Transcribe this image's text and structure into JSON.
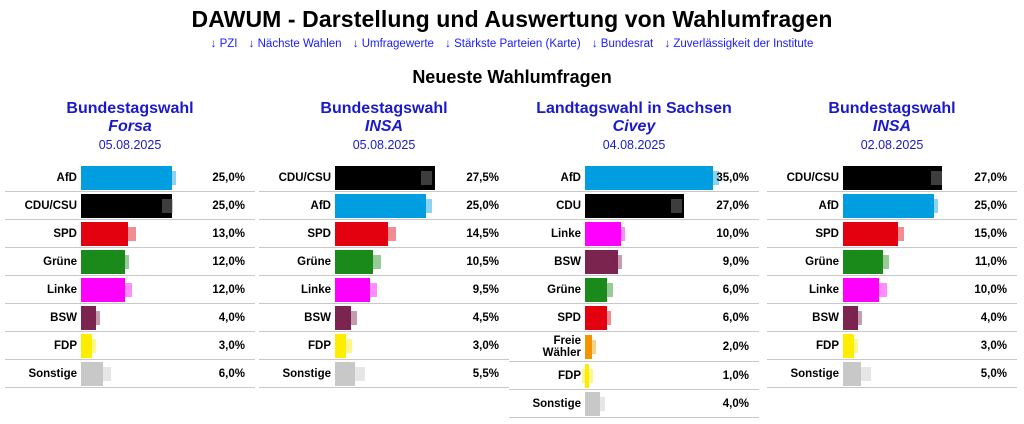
{
  "header": {
    "title": "DAWUM - Darstellung und Auswertung von Wahlumfragen",
    "nav": [
      "↓ PZI",
      "↓ Nächste Wahlen",
      "↓ Umfragewerte",
      "↓ Stärkste Parteien (Karte)",
      "↓ Bundesrat",
      "↓ Zuverlässigkeit der Institute"
    ]
  },
  "section_title": "Neueste Wahlumfragen",
  "colors": {
    "AfD": "#009ee0",
    "CDU/CSU": "#000000",
    "CDU": "#000000",
    "SPD": "#e3000f",
    "Grüne": "#1a8b1a",
    "Linke": "#ff00ff",
    "BSW": "#7b2450",
    "FDP": "#ffed00",
    "Freie Wähler": "#f29400",
    "Sonstige": "#c8c8c8",
    "link": "#1a1aff",
    "heading": "#1a1acc"
  },
  "scale_max_percent": 37,
  "polls": [
    {
      "election": "Bundestagswahl",
      "institute": "Forsa",
      "date": "05.08.2025",
      "results": [
        {
          "party": "AfD",
          "value": 25.0,
          "display": "25,0%",
          "ghost": 25.0
        },
        {
          "party": "CDU/CSU",
          "value": 25.0,
          "display": "25,0%",
          "ghost": 24.0
        },
        {
          "party": "SPD",
          "value": 13.0,
          "display": "13,0%",
          "ghost": 14.0
        },
        {
          "party": "Grüne",
          "value": 12.0,
          "display": "12,0%",
          "ghost": 12.0
        },
        {
          "party": "Linke",
          "value": 12.0,
          "display": "12,0%",
          "ghost": 13.0
        },
        {
          "party": "BSW",
          "value": 4.0,
          "display": "4,0%",
          "ghost": 4.0
        },
        {
          "party": "FDP",
          "value": 3.0,
          "display": "3,0%",
          "ghost": 3.0
        },
        {
          "party": "Sonstige",
          "value": 6.0,
          "display": "6,0%",
          "ghost": 7.0
        }
      ]
    },
    {
      "election": "Bundestagswahl",
      "institute": "INSA",
      "date": "05.08.2025",
      "results": [
        {
          "party": "CDU/CSU",
          "value": 27.5,
          "display": "27,5%",
          "ghost": 25.5
        },
        {
          "party": "AfD",
          "value": 25.0,
          "display": "25,0%",
          "ghost": 25.5
        },
        {
          "party": "SPD",
          "value": 14.5,
          "display": "14,5%",
          "ghost": 15.5
        },
        {
          "party": "Grüne",
          "value": 10.5,
          "display": "10,5%",
          "ghost": 11.5
        },
        {
          "party": "Linke",
          "value": 9.5,
          "display": "9,5%",
          "ghost": 10.5
        },
        {
          "party": "BSW",
          "value": 4.5,
          "display": "4,5%",
          "ghost": 5.0
        },
        {
          "party": "FDP",
          "value": 3.0,
          "display": "3,0%",
          "ghost": 3.5
        },
        {
          "party": "Sonstige",
          "value": 5.5,
          "display": "5,5%",
          "ghost": 7.0
        }
      ]
    },
    {
      "election": "Landtagswahl in Sachsen",
      "institute": "Civey",
      "date": "04.08.2025",
      "results": [
        {
          "party": "AfD",
          "value": 35.0,
          "display": "35,0%",
          "ghost": 35.5
        },
        {
          "party": "CDU",
          "value": 27.0,
          "display": "27,0%",
          "ghost": 25.5
        },
        {
          "party": "Linke",
          "value": 10.0,
          "display": "10,0%",
          "ghost": 10.0
        },
        {
          "party": "BSW",
          "value": 9.0,
          "display": "9,0%",
          "ghost": 9.0
        },
        {
          "party": "Grüne",
          "value": 6.0,
          "display": "6,0%",
          "ghost": 6.5
        },
        {
          "party": "SPD",
          "value": 6.0,
          "display": "6,0%",
          "ghost": 6.0
        },
        {
          "party": "Freie Wähler",
          "label_lines": [
            "Freie",
            "Wähler"
          ],
          "value": 2.0,
          "display": "2,0%",
          "ghost": 2.0
        },
        {
          "party": "FDP",
          "value": 1.0,
          "display": "1,0%",
          "ghost": 1.0
        },
        {
          "party": "Sonstige",
          "value": 4.0,
          "display": "4,0%",
          "ghost": 4.5
        }
      ]
    },
    {
      "election": "Bundestagswahl",
      "institute": "INSA",
      "date": "02.08.2025",
      "results": [
        {
          "party": "CDU/CSU",
          "value": 27.0,
          "display": "27,0%",
          "ghost": 26.0
        },
        {
          "party": "AfD",
          "value": 25.0,
          "display": "25,0%",
          "ghost": 25.0
        },
        {
          "party": "SPD",
          "value": 15.0,
          "display": "15,0%",
          "ghost": 15.5
        },
        {
          "party": "Grüne",
          "value": 11.0,
          "display": "11,0%",
          "ghost": 11.5
        },
        {
          "party": "Linke",
          "value": 10.0,
          "display": "10,0%",
          "ghost": 11.0
        },
        {
          "party": "BSW",
          "value": 4.0,
          "display": "4,0%",
          "ghost": 4.0
        },
        {
          "party": "FDP",
          "value": 3.0,
          "display": "3,0%",
          "ghost": 3.0
        },
        {
          "party": "Sonstige",
          "value": 5.0,
          "display": "5,0%",
          "ghost": 6.5
        }
      ]
    }
  ],
  "chart_data": [
    {
      "type": "bar",
      "title": "Bundestagswahl Forsa 05.08.2025",
      "categories": [
        "AfD",
        "CDU/CSU",
        "SPD",
        "Grüne",
        "Linke",
        "BSW",
        "FDP",
        "Sonstige"
      ],
      "values": [
        25.0,
        25.0,
        13.0,
        12.0,
        12.0,
        4.0,
        3.0,
        6.0
      ],
      "xlabel": "",
      "ylabel": "%"
    },
    {
      "type": "bar",
      "title": "Bundestagswahl INSA 05.08.2025",
      "categories": [
        "CDU/CSU",
        "AfD",
        "SPD",
        "Grüne",
        "Linke",
        "BSW",
        "FDP",
        "Sonstige"
      ],
      "values": [
        27.5,
        25.0,
        14.5,
        10.5,
        9.5,
        4.5,
        3.0,
        5.5
      ],
      "xlabel": "",
      "ylabel": "%"
    },
    {
      "type": "bar",
      "title": "Landtagswahl in Sachsen Civey 04.08.2025",
      "categories": [
        "AfD",
        "CDU",
        "Linke",
        "BSW",
        "Grüne",
        "SPD",
        "Freie Wähler",
        "FDP",
        "Sonstige"
      ],
      "values": [
        35.0,
        27.0,
        10.0,
        9.0,
        6.0,
        6.0,
        2.0,
        1.0,
        4.0
      ],
      "xlabel": "",
      "ylabel": "%"
    },
    {
      "type": "bar",
      "title": "Bundestagswahl INSA 02.08.2025",
      "categories": [
        "CDU/CSU",
        "AfD",
        "SPD",
        "Grüne",
        "Linke",
        "BSW",
        "FDP",
        "Sonstige"
      ],
      "values": [
        27.0,
        25.0,
        15.0,
        11.0,
        10.0,
        4.0,
        3.0,
        5.0
      ],
      "xlabel": "",
      "ylabel": "%"
    }
  ]
}
